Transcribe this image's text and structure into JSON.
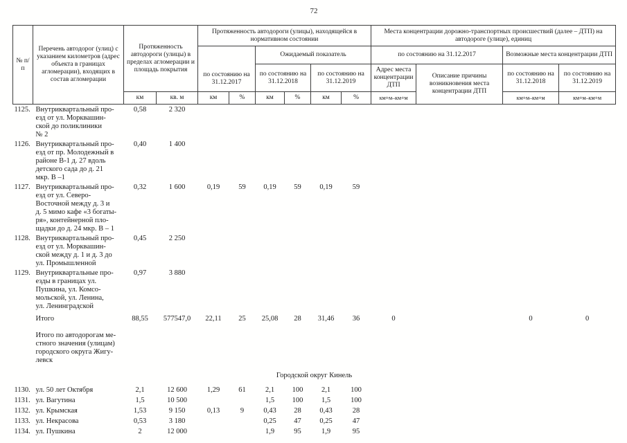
{
  "page_number": "72",
  "table": {
    "header": {
      "num": "№ п/п",
      "list": "Перечень автодорог (улиц) с указанием километров (адрес объекта в границах агломерации), входящих в состав агломерации",
      "extent": "Протяженность автодороги (улицы) в пределах агломерации и площадь покрытия",
      "normative": "Протяженность автодороги (улицы), находящейся в нормативном состоянии",
      "accidents": "Места концентрации дорожно-транспортных происшествий (далее – ДТП) на автодороге (улице), единиц",
      "expected": "Ожидаемый показатель",
      "asof2017": "по состоянию на 31.12.2017",
      "asof2018": "по состоянию на 31.12.2018",
      "asof2019": "по состоянию на 31.12.2019",
      "possible": "Возможные места концентрации ДТП",
      "address": "Адрес места концентрации ДТП",
      "cause": "Описание причины возникновения места концентрации ДТП",
      "u_km": "км",
      "u_sqm": "кв. м",
      "u_pct": "%",
      "u_kmm": "км+м–км+м"
    },
    "rows": [
      {
        "type": "item",
        "num": "1125.",
        "name": "Внутриквартальный про-\nезд от ул. Морквашин-\nской до поликлиники\n№ 2",
        "cells": [
          "0,58",
          "2 320",
          "",
          "",
          "",
          "",
          "",
          "",
          "",
          "",
          "",
          ""
        ]
      },
      {
        "type": "item",
        "num": "1126.",
        "name": "Внутриквартальный про-\nезд от пр. Молодежный в\nрайоне В-1 д. 27 вдоль\nдетского сада до д. 21\nмкр. В –1",
        "cells": [
          "0,40",
          "1 400",
          "",
          "",
          "",
          "",
          "",
          "",
          "",
          "",
          "",
          ""
        ]
      },
      {
        "type": "item",
        "num": "1127.",
        "name": "Внутриквартальный про-\nезд от ул. Северо-\nВосточной между д. 3 и\nд. 5 мимо кафе «3 богаты-\nря», контейнерной пло-\nщадки до д. 24 мкр. В – 1",
        "cells": [
          "0,32",
          "1 600",
          "0,19",
          "59",
          "0,19",
          "59",
          "0,19",
          "59",
          "",
          "",
          "",
          ""
        ]
      },
      {
        "type": "item",
        "num": "1128.",
        "name": "Внутриквартальный про-\nезд от ул. Морквашин-\nской между д. 1 и д. 3 до\nул. Промышленной",
        "cells": [
          "0,45",
          "2 250",
          "",
          "",
          "",
          "",
          "",
          "",
          "",
          "",
          "",
          ""
        ]
      },
      {
        "type": "item",
        "num": "1129.",
        "name": "Внутриквартальные про-\nезды в границах ул.\nПушкина, ул. Комсо-\nмольской, ул. Ленина,\nул. Ленинградской",
        "cells": [
          "0,97",
          "3 880",
          "",
          "",
          "",
          "",
          "",
          "",
          "",
          "",
          "",
          ""
        ]
      },
      {
        "type": "total",
        "gap": "sm",
        "num": "",
        "name": "Итого",
        "cells": [
          "88,55",
          "577547,0",
          "22,11",
          "25",
          "25,08",
          "28",
          "31,46",
          "36",
          "0",
          "",
          "0",
          "0"
        ]
      },
      {
        "type": "note",
        "gap": "md",
        "num": "",
        "name": "Итого по автодорогам ме-\nстного значения (улицам)\nгородского округа Жигу-\nлевск",
        "cells": [
          "",
          "",
          "",
          "",
          "",
          "",
          "",
          "",
          "",
          "",
          "",
          ""
        ]
      },
      {
        "type": "section",
        "name": "Городской округ Кинель"
      },
      {
        "type": "street",
        "num": "1130.",
        "name": "ул. 50 лет Октября",
        "cells": [
          "2,1",
          "12 600",
          "1,29",
          "61",
          "2,1",
          "100",
          "2,1",
          "100",
          "",
          "",
          "",
          ""
        ]
      },
      {
        "type": "street",
        "num": "1131.",
        "name": "ул. Вагутина",
        "cells": [
          "1,5",
          "10 500",
          "",
          "",
          "1,5",
          "100",
          "1,5",
          "100",
          "",
          "",
          "",
          ""
        ]
      },
      {
        "type": "street",
        "num": "1132.",
        "name": "ул. Крымская",
        "cells": [
          "1,53",
          "9 150",
          "0,13",
          "9",
          "0,43",
          "28",
          "0,43",
          "28",
          "",
          "",
          "",
          ""
        ]
      },
      {
        "type": "street",
        "num": "1133.",
        "name": "ул. Некрасова",
        "cells": [
          "0,53",
          "3 180",
          "",
          "",
          "0,25",
          "47",
          "0,25",
          "47",
          "",
          "",
          "",
          ""
        ]
      },
      {
        "type": "street",
        "num": "1134.",
        "name": "ул. Пушкина",
        "cells": [
          "2",
          "12 000",
          "",
          "",
          "1,9",
          "95",
          "1,9",
          "95",
          "",
          "",
          "",
          ""
        ]
      }
    ]
  }
}
